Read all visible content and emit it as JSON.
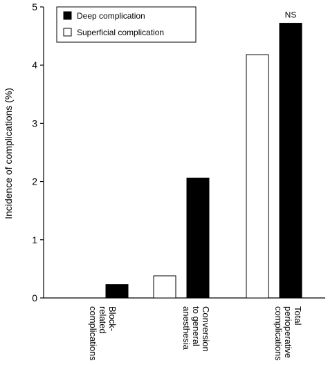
{
  "chart_data": {
    "type": "bar",
    "ylabel": "Incidence of complications (%)",
    "ylim": [
      0,
      5
    ],
    "yticks": [
      "0",
      "1",
      "2",
      "3",
      "4",
      "5"
    ],
    "categories": [
      [
        "Block-",
        "related",
        "complications"
      ],
      [
        "Conversion",
        "to general",
        "anesthesia"
      ],
      [
        "Total",
        "perioperative",
        "complications"
      ]
    ],
    "series": [
      {
        "name": "Superficial complication",
        "fill": "#ffffff",
        "values": [
          0,
          0.38,
          4.18
        ]
      },
      {
        "name": "Deep complication",
        "fill": "#000000",
        "values": [
          0.23,
          2.06,
          4.72
        ]
      }
    ],
    "legend": {
      "position": "top-left",
      "entries": [
        "Deep complication",
        "Superficial complication"
      ]
    },
    "annotations": [
      {
        "text": "NS",
        "category": 2
      }
    ],
    "grid": false
  }
}
